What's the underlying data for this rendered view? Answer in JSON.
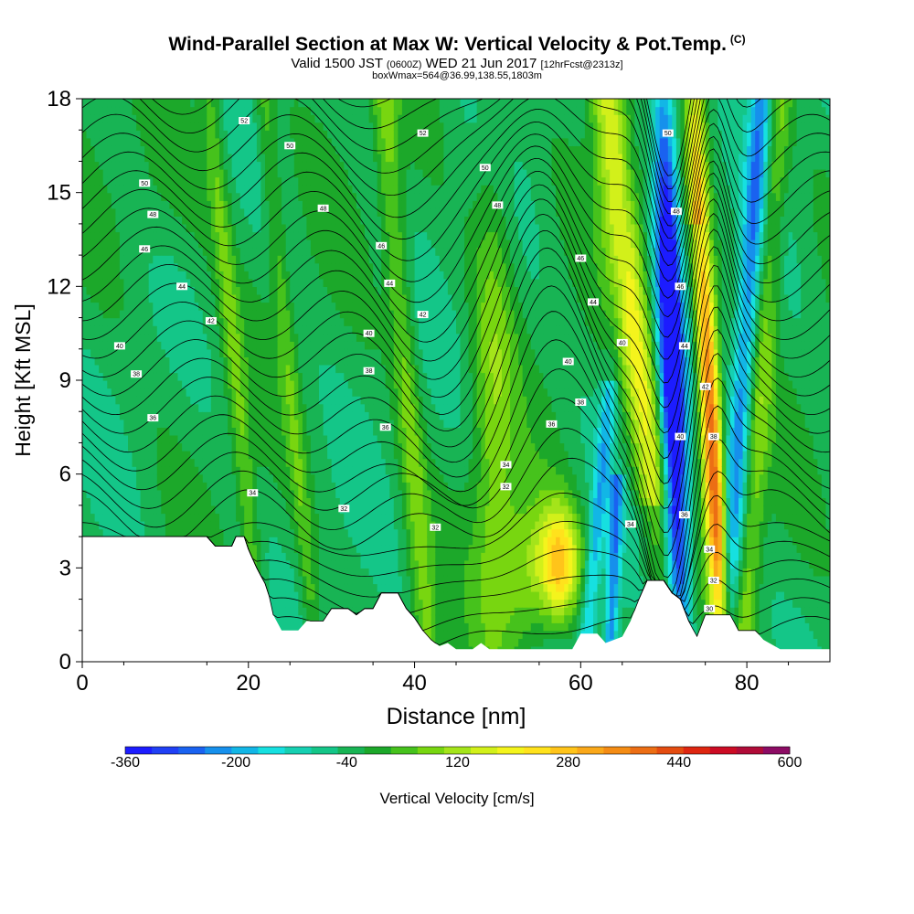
{
  "header": {
    "title": "Wind-Parallel Section at Max W: Vertical Velocity & Pot.Temp.",
    "copyright_mark": "(C)",
    "valid_prefix": "Valid 1500 JST",
    "valid_utc": "(0600Z)",
    "valid_date": "WED 21 Jun 2017",
    "forecast": "[12hrFcst@2313z]",
    "box_info": "boxWmax=564@36.99,138.55,1803m"
  },
  "chart_data": {
    "type": "heatmap",
    "xlabel": "Distance [nm]",
    "ylabel": "Height [Kft MSL]",
    "xlim": [
      0,
      90
    ],
    "ylim": [
      0,
      18
    ],
    "x_ticks": [
      0,
      20,
      40,
      60,
      80
    ],
    "y_ticks": [
      0,
      3,
      6,
      9,
      12,
      15,
      18
    ],
    "colorbar": {
      "title": "Vertical Velocity [cm/s]",
      "min": -360,
      "max": 600,
      "step": 40,
      "tick_labels": [
        "-360",
        "-200",
        "-40",
        "120",
        "280",
        "440",
        "600"
      ],
      "colors": [
        "#1c1cff",
        "#2040f5",
        "#1a62f0",
        "#1690ec",
        "#12b6e6",
        "#16e0e0",
        "#16d0b2",
        "#14c688",
        "#18b454",
        "#1ca82a",
        "#46c21c",
        "#78d610",
        "#a4e41a",
        "#d2f01a",
        "#f4f41c",
        "#ffe21c",
        "#ffc41a",
        "#faa81a",
        "#f48c14",
        "#ec6e14",
        "#e44c10",
        "#de2610",
        "#cc0c24",
        "#b00c38",
        "#8c0c64"
      ]
    },
    "velocity_features": [
      {
        "x": 71.0,
        "y": 9.0,
        "width_nm": 1.6,
        "value": -360
      },
      {
        "x": 75.8,
        "y": 7.0,
        "width_nm": 1.3,
        "value": 520
      },
      {
        "x": 57.0,
        "y": 3.2,
        "width_nm": 3.0,
        "value": 300
      },
      {
        "x": 66.8,
        "y": 10.0,
        "width_nm": 2.2,
        "value": 220
      },
      {
        "x": 63.5,
        "y": 3.0,
        "width_nm": 1.2,
        "value": -200
      }
    ],
    "terrain_kft": [
      [
        0,
        4.0
      ],
      [
        15,
        4.0
      ],
      [
        16,
        3.7
      ],
      [
        18,
        3.7
      ],
      [
        18.5,
        4.0
      ],
      [
        19.5,
        4.0
      ],
      [
        20,
        3.6
      ],
      [
        20.5,
        3.3
      ],
      [
        21,
        3.0
      ],
      [
        22,
        2.5
      ],
      [
        22.5,
        2.1
      ],
      [
        23,
        1.5
      ],
      [
        24,
        1.0
      ],
      [
        25,
        1.0
      ],
      [
        26,
        1.0
      ],
      [
        27,
        1.3
      ],
      [
        29,
        1.3
      ],
      [
        30,
        1.7
      ],
      [
        32,
        1.7
      ],
      [
        33,
        1.5
      ],
      [
        34,
        1.7
      ],
      [
        35,
        1.7
      ],
      [
        36,
        2.2
      ],
      [
        38,
        2.2
      ],
      [
        39,
        1.7
      ],
      [
        40,
        1.4
      ],
      [
        41,
        1.0
      ],
      [
        42,
        0.7
      ],
      [
        43,
        0.5
      ],
      [
        44,
        0.6
      ],
      [
        45,
        0.4
      ],
      [
        47,
        0.4
      ],
      [
        48,
        0.6
      ],
      [
        49,
        0.4
      ],
      [
        56,
        0.4
      ],
      [
        59,
        0.4
      ],
      [
        60,
        0.9
      ],
      [
        62,
        0.9
      ],
      [
        63,
        0.6
      ],
      [
        65,
        0.8
      ],
      [
        66,
        1.3
      ],
      [
        67,
        2.0
      ],
      [
        68,
        2.6
      ],
      [
        70,
        2.6
      ],
      [
        71,
        2.2
      ],
      [
        72,
        2.0
      ],
      [
        73,
        1.3
      ],
      [
        74,
        0.8
      ],
      [
        75,
        1.5
      ],
      [
        78,
        1.5
      ],
      [
        79,
        1.0
      ],
      [
        81,
        1.0
      ],
      [
        82,
        0.7
      ],
      [
        84,
        0.4
      ],
      [
        90,
        0.4
      ]
    ],
    "theta_labels": [
      {
        "x": 19.5,
        "y": 17.3,
        "label": "52"
      },
      {
        "x": 25.0,
        "y": 16.5,
        "label": "50"
      },
      {
        "x": 41.0,
        "y": 16.9,
        "label": "52"
      },
      {
        "x": 48.5,
        "y": 15.8,
        "label": "50"
      },
      {
        "x": 7.5,
        "y": 15.3,
        "label": "50"
      },
      {
        "x": 29.0,
        "y": 14.5,
        "label": "48"
      },
      {
        "x": 50.0,
        "y": 14.6,
        "label": "48"
      },
      {
        "x": 8.5,
        "y": 14.3,
        "label": "48"
      },
      {
        "x": 7.5,
        "y": 13.2,
        "label": "46"
      },
      {
        "x": 36.0,
        "y": 13.3,
        "label": "46"
      },
      {
        "x": 60.0,
        "y": 12.9,
        "label": "46"
      },
      {
        "x": 12.0,
        "y": 12.0,
        "label": "44"
      },
      {
        "x": 37.0,
        "y": 12.1,
        "label": "44"
      },
      {
        "x": 61.5,
        "y": 11.5,
        "label": "44"
      },
      {
        "x": 15.5,
        "y": 10.9,
        "label": "42"
      },
      {
        "x": 41.0,
        "y": 11.1,
        "label": "42"
      },
      {
        "x": 4.5,
        "y": 10.1,
        "label": "40"
      },
      {
        "x": 34.5,
        "y": 10.5,
        "label": "40"
      },
      {
        "x": 65.0,
        "y": 10.2,
        "label": "40"
      },
      {
        "x": 58.5,
        "y": 9.6,
        "label": "40"
      },
      {
        "x": 6.5,
        "y": 9.2,
        "label": "38"
      },
      {
        "x": 34.5,
        "y": 9.3,
        "label": "38"
      },
      {
        "x": 60.0,
        "y": 8.3,
        "label": "38"
      },
      {
        "x": 8.5,
        "y": 7.8,
        "label": "36"
      },
      {
        "x": 36.5,
        "y": 7.5,
        "label": "36"
      },
      {
        "x": 56.5,
        "y": 7.6,
        "label": "36"
      },
      {
        "x": 51.0,
        "y": 6.3,
        "label": "34"
      },
      {
        "x": 51.0,
        "y": 5.6,
        "label": "32"
      },
      {
        "x": 20.5,
        "y": 5.4,
        "label": "34"
      },
      {
        "x": 31.5,
        "y": 4.9,
        "label": "32"
      },
      {
        "x": 42.5,
        "y": 4.3,
        "label": "32"
      },
      {
        "x": 66.0,
        "y": 4.4,
        "label": "34"
      },
      {
        "x": 70.5,
        "y": 16.9,
        "label": "50"
      },
      {
        "x": 71.5,
        "y": 14.4,
        "label": "48"
      },
      {
        "x": 72.0,
        "y": 12.0,
        "label": "46"
      },
      {
        "x": 72.5,
        "y": 10.1,
        "label": "44"
      },
      {
        "x": 75.0,
        "y": 8.8,
        "label": "42"
      },
      {
        "x": 76.0,
        "y": 7.2,
        "label": "38"
      },
      {
        "x": 72.0,
        "y": 7.2,
        "label": "40"
      },
      {
        "x": 72.5,
        "y": 4.7,
        "label": "36"
      },
      {
        "x": 75.5,
        "y": 3.6,
        "label": "34"
      },
      {
        "x": 76.0,
        "y": 2.6,
        "label": "32"
      },
      {
        "x": 75.5,
        "y": 1.7,
        "label": "30"
      }
    ]
  }
}
